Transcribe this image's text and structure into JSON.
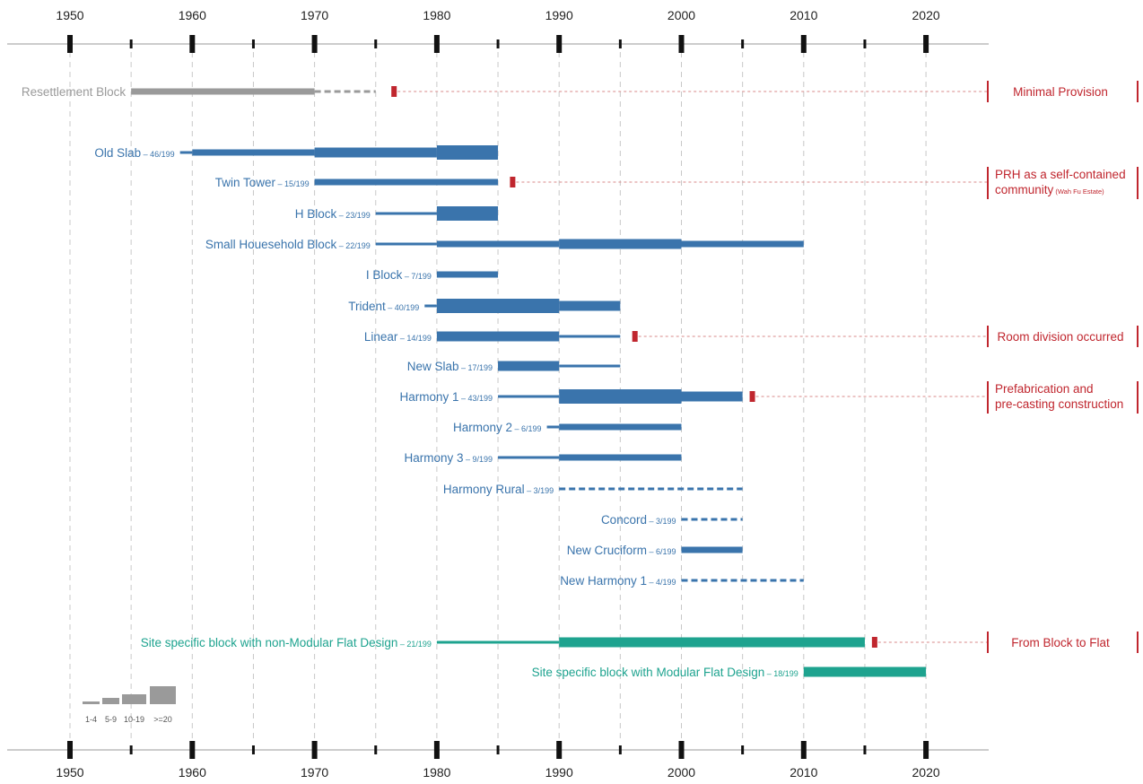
{
  "chart_data": {
    "type": "timeline",
    "x_axis": {
      "range": [
        1945,
        2025
      ],
      "tick_labels": [
        "1950",
        "1960",
        "1970",
        "1980",
        "1990",
        "2000",
        "2010",
        "2020"
      ],
      "major_ticks": [
        1950,
        1960,
        1970,
        1980,
        1990,
        2000,
        2010,
        2020
      ],
      "minor_ticks": [
        1955,
        1965,
        1975,
        1985,
        1995,
        2005,
        2015
      ]
    },
    "grid": true,
    "colors": {
      "gray": "#9a9a9a",
      "blue": "#3a74ac",
      "teal": "#1ea38f",
      "red": "#c0262e",
      "grid": "#c8c8c8",
      "axis": "#999999"
    },
    "legend": {
      "placement": "bottom-left",
      "items": [
        {
          "label": "1-4",
          "tier": 1
        },
        {
          "label": "5-9",
          "tier": 2
        },
        {
          "label": "10-19",
          "tier": 3
        },
        {
          "label": ">=20",
          "tier": 4
        }
      ]
    },
    "series": [
      {
        "name": "Resettlement Block",
        "count": "",
        "color": "gray",
        "segments": [
          {
            "start": 1955,
            "end": 1970,
            "tier": 2,
            "style": "solid"
          },
          {
            "start": 1970,
            "end": 1975,
            "tier": 1,
            "style": "dashed"
          }
        ],
        "marker": 1976.5,
        "annotation": 0
      },
      {
        "name": "Old Slab",
        "count": "– 46/199",
        "color": "blue",
        "segments": [
          {
            "start": 1959,
            "end": 1960,
            "tier": 1,
            "style": "solid"
          },
          {
            "start": 1960,
            "end": 1970,
            "tier": 2,
            "style": "solid"
          },
          {
            "start": 1970,
            "end": 1980,
            "tier": 3,
            "style": "solid"
          },
          {
            "start": 1980,
            "end": 1985,
            "tier": 4,
            "style": "solid"
          }
        ]
      },
      {
        "name": "Twin Tower",
        "count": "– 15/199",
        "color": "blue",
        "segments": [
          {
            "start": 1970,
            "end": 1985,
            "tier": 2,
            "style": "solid"
          }
        ],
        "marker": 1986.2,
        "annotation": 1
      },
      {
        "name": "H Block",
        "count": "– 23/199",
        "color": "blue",
        "segments": [
          {
            "start": 1975,
            "end": 1980,
            "tier": 1,
            "style": "solid"
          },
          {
            "start": 1980,
            "end": 1985,
            "tier": 4,
            "style": "solid"
          }
        ]
      },
      {
        "name": "Small Houesehold Block",
        "count": "– 22/199",
        "color": "blue",
        "segments": [
          {
            "start": 1975,
            "end": 1980,
            "tier": 1,
            "style": "solid"
          },
          {
            "start": 1980,
            "end": 1990,
            "tier": 2,
            "style": "solid"
          },
          {
            "start": 1990,
            "end": 2000,
            "tier": 3,
            "style": "solid"
          },
          {
            "start": 2000,
            "end": 2010,
            "tier": 2,
            "style": "solid"
          }
        ]
      },
      {
        "name": "I Block",
        "count": "– 7/199",
        "color": "blue",
        "segments": [
          {
            "start": 1980,
            "end": 1985,
            "tier": 2,
            "style": "solid"
          }
        ]
      },
      {
        "name": "Trident",
        "count": "– 40/199",
        "color": "blue",
        "segments": [
          {
            "start": 1979,
            "end": 1980,
            "tier": 1,
            "style": "solid"
          },
          {
            "start": 1980,
            "end": 1990,
            "tier": 4,
            "style": "solid"
          },
          {
            "start": 1990,
            "end": 1995,
            "tier": 3,
            "style": "solid"
          }
        ]
      },
      {
        "name": "Linear",
        "count": "– 14/199",
        "color": "blue",
        "segments": [
          {
            "start": 1980,
            "end": 1990,
            "tier": 3,
            "style": "solid"
          },
          {
            "start": 1990,
            "end": 1995,
            "tier": 1,
            "style": "solid"
          }
        ],
        "marker": 1996.2,
        "annotation": 2
      },
      {
        "name": "New Slab",
        "count": "– 17/199",
        "color": "blue",
        "segments": [
          {
            "start": 1985,
            "end": 1990,
            "tier": 3,
            "style": "solid"
          },
          {
            "start": 1990,
            "end": 1995,
            "tier": 1,
            "style": "solid"
          }
        ]
      },
      {
        "name": "Harmony 1",
        "count": "– 43/199",
        "color": "blue",
        "segments": [
          {
            "start": 1985,
            "end": 1990,
            "tier": 1,
            "style": "solid"
          },
          {
            "start": 1990,
            "end": 2000,
            "tier": 4,
            "style": "solid"
          },
          {
            "start": 2000,
            "end": 2005,
            "tier": 3,
            "style": "solid"
          }
        ],
        "marker": 2005.8,
        "annotation": 3
      },
      {
        "name": "Harmony 2",
        "count": "– 6/199",
        "color": "blue",
        "segments": [
          {
            "start": 1989,
            "end": 1990,
            "tier": 1,
            "style": "solid"
          },
          {
            "start": 1990,
            "end": 2000,
            "tier": 2,
            "style": "solid"
          }
        ]
      },
      {
        "name": "Harmony 3",
        "count": "– 9/199",
        "color": "blue",
        "segments": [
          {
            "start": 1985,
            "end": 1990,
            "tier": 1,
            "style": "solid"
          },
          {
            "start": 1990,
            "end": 2000,
            "tier": 2,
            "style": "solid"
          }
        ]
      },
      {
        "name": "Harmony Rural",
        "count": "– 3/199",
        "color": "blue",
        "segments": [
          {
            "start": 1990,
            "end": 2005,
            "tier": 1,
            "style": "dashed"
          }
        ]
      },
      {
        "name": "Concord",
        "count": "– 3/199",
        "color": "blue",
        "segments": [
          {
            "start": 2000,
            "end": 2005,
            "tier": 1,
            "style": "dashed"
          }
        ]
      },
      {
        "name": "New Cruciform",
        "count": "– 6/199",
        "color": "blue",
        "segments": [
          {
            "start": 2000,
            "end": 2005,
            "tier": 2,
            "style": "solid"
          }
        ]
      },
      {
        "name": "New Harmony 1",
        "count": "– 4/199",
        "color": "blue",
        "segments": [
          {
            "start": 2000,
            "end": 2010,
            "tier": 1,
            "style": "dashed"
          }
        ]
      },
      {
        "name": "Site  specific block with non-Modular Flat Design",
        "count": "– 21/199",
        "color": "teal",
        "segments": [
          {
            "start": 1980,
            "end": 1990,
            "tier": 1,
            "style": "solid"
          },
          {
            "start": 1990,
            "end": 2015,
            "tier": 3,
            "style": "solid"
          }
        ],
        "marker": 2015.8,
        "annotation": 4
      },
      {
        "name": "Site specific block with Modular Flat Design",
        "count": "– 18/199",
        "color": "teal",
        "segments": [
          {
            "start": 2010,
            "end": 2020,
            "tier": 3,
            "style": "solid"
          }
        ]
      }
    ],
    "annotations": [
      {
        "lines": [
          "Minimal Provision"
        ],
        "small": ""
      },
      {
        "lines": [
          "PRH as a self-contained",
          "community"
        ],
        "small": "(Wah Fu Estate)"
      },
      {
        "lines": [
          "Room division occurred"
        ],
        "small": ""
      },
      {
        "lines": [
          "Prefabrication and",
          "pre-casting construction"
        ],
        "small": ""
      },
      {
        "lines": [
          "From Block to Flat"
        ],
        "small": ""
      }
    ]
  }
}
